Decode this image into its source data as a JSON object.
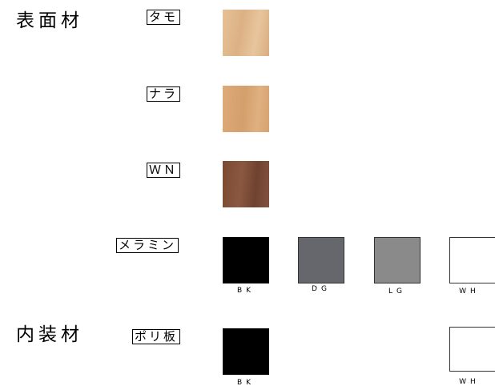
{
  "sections": [
    {
      "title": "表面材",
      "items": [
        {
          "label": "タモ"
        },
        {
          "label": "ナラ"
        },
        {
          "label": "ＷＮ"
        },
        {
          "label": "メラミン",
          "codes": [
            "BK",
            "DG",
            "LG",
            "WH"
          ]
        }
      ]
    },
    {
      "title": "内装材",
      "items": [
        {
          "label": "ポリ板",
          "codes": [
            "BK",
            "WH"
          ]
        }
      ]
    }
  ]
}
